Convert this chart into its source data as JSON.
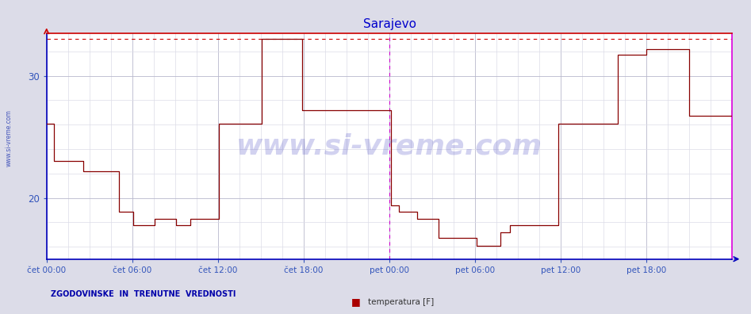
{
  "title": "Sarajevo",
  "title_color": "#0000cc",
  "fig_bg": "#dcdce8",
  "plot_bg": "#ffffff",
  "grid_major_color": "#b8b8cc",
  "grid_minor_color": "#dcdce8",
  "line_color": "#880000",
  "xlim": [
    0,
    576
  ],
  "ylim": [
    15.0,
    33.5
  ],
  "yticks": [
    20,
    30
  ],
  "xtick_positions": [
    0,
    72,
    144,
    216,
    288,
    360,
    432,
    504
  ],
  "xtick_labels": [
    "čet 00:00",
    "čet 06:00",
    "čet 12:00",
    "čet 18:00",
    "pet 00:00",
    "pet 06:00",
    "pet 12:00",
    "pet 18:00"
  ],
  "vline_x": 288,
  "vline_color": "#cc00cc",
  "top_line_y": 33.0,
  "top_line_color": "#cc0000",
  "watermark": "www.si-vreme.com",
  "watermark_color": "#3333bb",
  "sidebar": "www.si-vreme.com",
  "sidebar_color": "#4455bb",
  "footer_left": "ZGODOVINSKE  IN  TRENUTNE  VREDNOSTI",
  "footer_color": "#0000aa",
  "legend_label": "temperatura [F]",
  "legend_sq_color": "#aa0000",
  "spine_left_color": "#0000bb",
  "spine_bottom_color": "#0000bb",
  "spine_right_color": "#dd00dd",
  "spine_top_color": "#cc0000",
  "data_x": [
    0,
    5,
    6,
    30,
    31,
    60,
    61,
    72,
    73,
    90,
    91,
    108,
    109,
    120,
    121,
    144,
    145,
    180,
    181,
    214,
    215,
    288,
    289,
    295,
    296,
    310,
    311,
    328,
    329,
    360,
    361,
    380,
    381,
    388,
    389,
    416,
    417,
    430,
    431,
    480,
    481,
    504,
    505,
    540,
    541,
    576
  ],
  "data_y": [
    26.1,
    26.1,
    23.0,
    23.0,
    22.2,
    22.2,
    18.9,
    18.9,
    17.8,
    17.8,
    18.3,
    18.3,
    17.8,
    17.8,
    18.3,
    18.3,
    26.1,
    26.1,
    33.0,
    33.0,
    27.2,
    27.2,
    19.4,
    19.4,
    18.9,
    18.9,
    18.3,
    18.3,
    16.7,
    16.7,
    16.1,
    16.1,
    17.2,
    17.2,
    17.8,
    17.8,
    17.8,
    26.1,
    26.1,
    31.7,
    31.7,
    32.2,
    32.2,
    26.7,
    26.7,
    27.2
  ]
}
